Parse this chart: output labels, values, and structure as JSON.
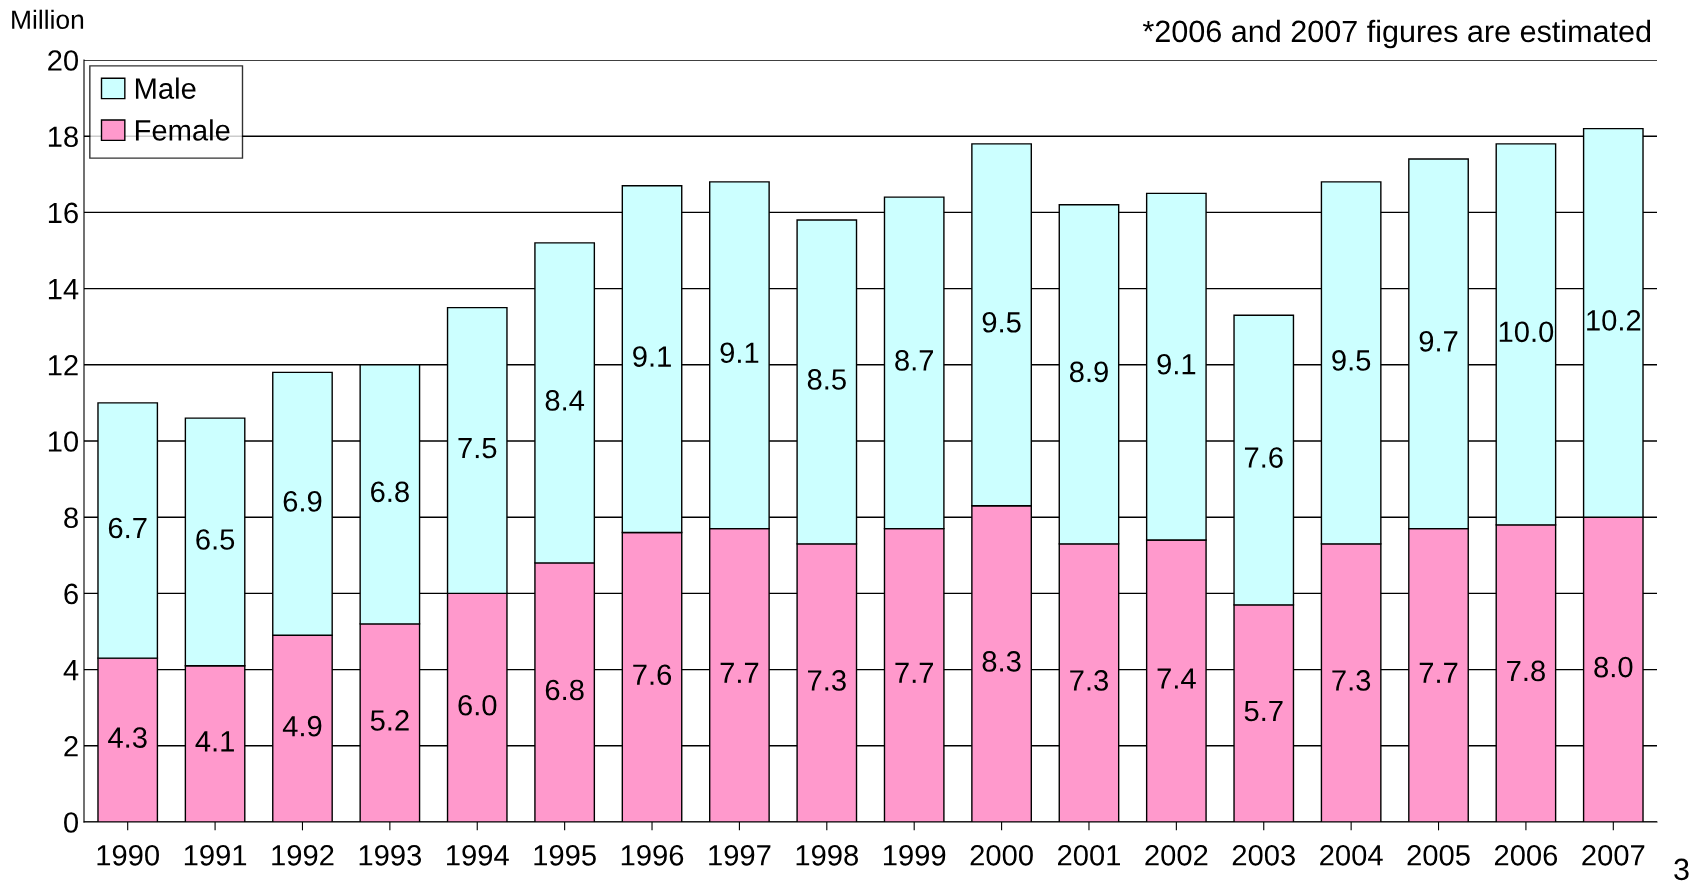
{
  "chart_data": {
    "type": "bar",
    "stacked": true,
    "ylabel": "Million",
    "categories": [
      "1990",
      "1991",
      "1992",
      "1993",
      "1994",
      "1995",
      "1996",
      "1997",
      "1998",
      "1999",
      "2000",
      "2001",
      "2002",
      "2003",
      "2004",
      "2005",
      "2006",
      "2007"
    ],
    "series": [
      {
        "name": "Female",
        "color": "#ff99cc",
        "values": [
          4.3,
          4.1,
          4.9,
          5.2,
          6.0,
          6.8,
          7.6,
          7.7,
          7.3,
          7.7,
          8.3,
          7.3,
          7.4,
          5.7,
          7.3,
          7.7,
          7.8,
          8.0
        ],
        "value_labels": [
          "4.3",
          "4.1",
          "4.9",
          "5.2",
          "6.0",
          "6.8",
          "7.6",
          "7.7",
          "7.3",
          "7.7",
          "8.3",
          "7.3",
          "7.4",
          "5.7",
          "7.3",
          "7.7",
          "7.8",
          "8.0"
        ]
      },
      {
        "name": "Male",
        "color": "#ccffff",
        "values": [
          6.7,
          6.5,
          6.9,
          6.8,
          7.5,
          8.4,
          9.1,
          9.1,
          8.5,
          8.7,
          9.5,
          8.9,
          9.1,
          7.6,
          9.5,
          9.7,
          10.0,
          10.2
        ],
        "value_labels": [
          "6.7",
          "6.5",
          "6.9",
          "6.8",
          "7.5",
          "8.4",
          "9.1",
          "9.1",
          "8.5",
          "8.7",
          "9.5",
          "8.9",
          "9.1",
          "7.6",
          "9.5",
          "9.7",
          "10.0",
          "10.2"
        ]
      }
    ],
    "ylim": [
      0,
      20
    ],
    "yticks": [
      0,
      2,
      4,
      6,
      8,
      10,
      12,
      14,
      16,
      18,
      20
    ],
    "grid": "y",
    "legend": "top left",
    "annotations": [
      "*2006 and 2007 figures are estimated",
      "3"
    ]
  }
}
